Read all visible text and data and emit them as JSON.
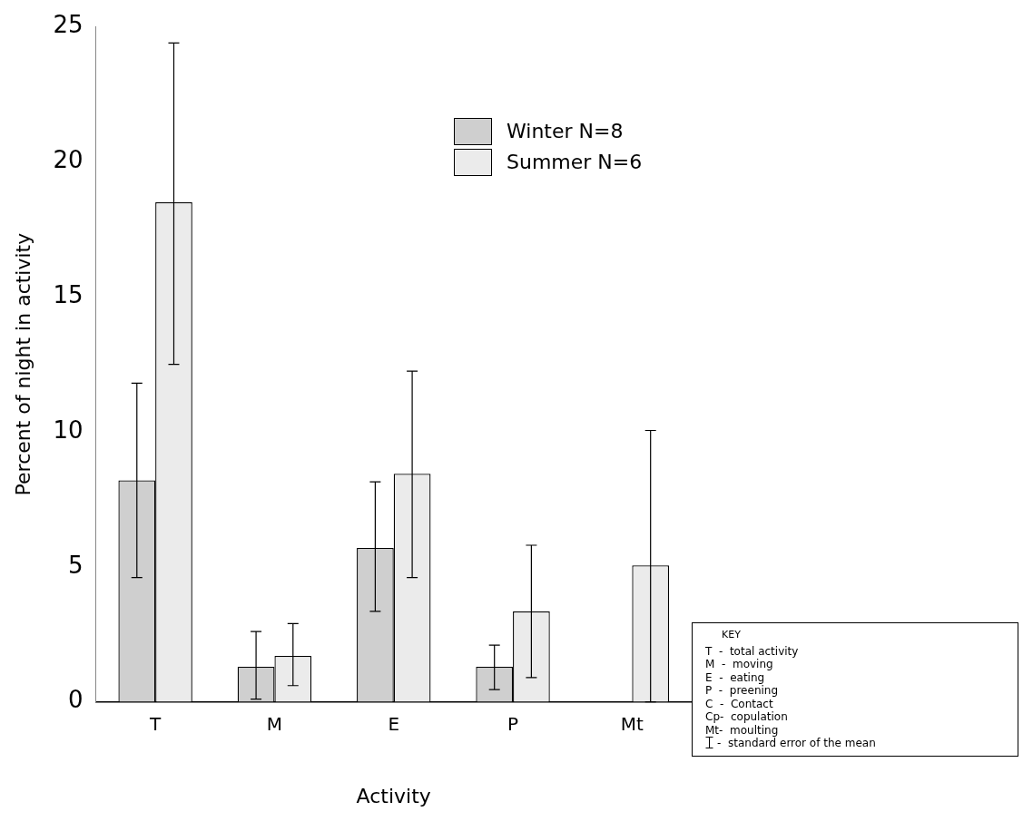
{
  "chart_data": {
    "type": "bar",
    "xlabel": "Activity",
    "ylabel": "Percent of night in activity",
    "categories": [
      "T",
      "M",
      "E",
      "P",
      "Mt"
    ],
    "series": [
      {
        "name": "Winter N=8",
        "color": "#cfcfcf",
        "values": [
          8.2,
          1.3,
          5.7,
          1.3,
          null
        ],
        "errors": [
          [
            4.6,
            11.8
          ],
          [
            0.1,
            2.6
          ],
          [
            3.35,
            8.15
          ],
          [
            0.45,
            2.1
          ],
          null
        ]
      },
      {
        "name": "Summer N=6",
        "color": "#ebebeb",
        "values": [
          18.5,
          1.7,
          8.45,
          3.35,
          5.05
        ],
        "errors": [
          [
            12.5,
            24.4
          ],
          [
            0.6,
            2.9
          ],
          [
            4.6,
            12.25
          ],
          [
            0.9,
            5.8
          ],
          [
            0,
            10.05
          ]
        ]
      }
    ],
    "ylim": [
      0,
      25
    ],
    "yticks": [
      0,
      5,
      10,
      15,
      20,
      25
    ],
    "grid": false,
    "legend": "top right",
    "annotations": [
      "KEY",
      "T  -  total activity",
      "M  -  moving",
      "E  -  eating",
      "P  -  preening",
      "C  -  Contact",
      "Cp-  copulation",
      "Mt-  moulting",
      "-  standard error of the mean"
    ]
  }
}
